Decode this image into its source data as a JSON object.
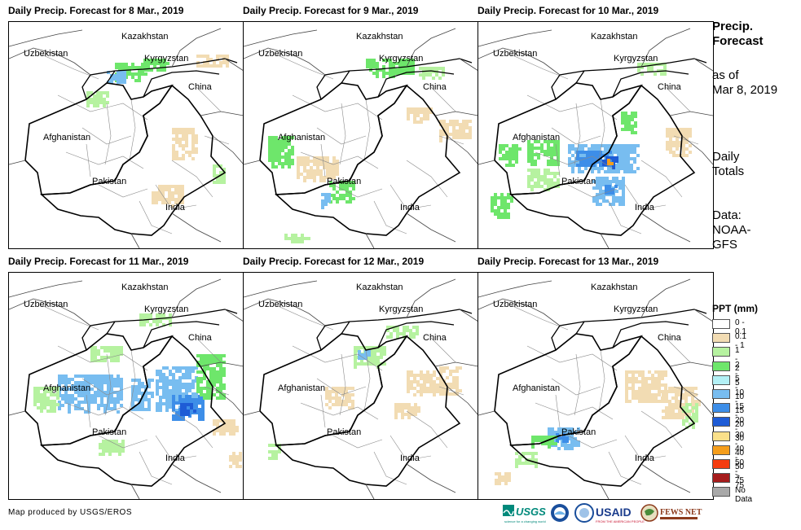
{
  "panels": [
    {
      "title": "Daily Precip. Forecast for 8 Mar., 2019",
      "intensity": 1
    },
    {
      "title": "Daily Precip. Forecast for 9 Mar., 2019",
      "intensity": 1
    },
    {
      "title": "Daily Precip. Forecast for 10 Mar., 2019",
      "intensity": 3
    },
    {
      "title": "Daily Precip. Forecast for 11 Mar., 2019",
      "intensity": 3
    },
    {
      "title": "Daily Precip. Forecast for 12 Mar., 2019",
      "intensity": 1
    },
    {
      "title": "Daily Precip. Forecast for 13 Mar., 2019",
      "intensity": 2
    }
  ],
  "map_labels": {
    "kazakhstan": "Kazakhstan",
    "uzbekistan": "Uzbekistan",
    "kyrgyzstan": "Kyrgyzstan",
    "china": "China",
    "afghanistan": "Afghanistan",
    "pakistan": "Pakistan",
    "india": "India"
  },
  "side": {
    "title_line1": "Precip.",
    "title_line2": "Forecast",
    "asof_line1": "as of",
    "asof_line2": "Mar 8, 2019",
    "daily_line1": "Daily",
    "daily_line2": "Totals",
    "data_line1": "Data:",
    "data_line2": "NOAA-",
    "data_line3": "GFS"
  },
  "legend": {
    "title": "PPT (mm)",
    "items": [
      {
        "label": "0 - 0.1",
        "color": "#ffffff"
      },
      {
        "label": "0.1 - 1",
        "color": "#f2dcb3"
      },
      {
        "label": "1 - 2",
        "color": "#b6f2a0"
      },
      {
        "label": "2 - 5",
        "color": "#6ee66b"
      },
      {
        "label": "5 - 10",
        "color": "#b3f0f5"
      },
      {
        "label": "10 - 15",
        "color": "#78bdf0"
      },
      {
        "label": "15 - 20",
        "color": "#3d8ee8"
      },
      {
        "label": "20 - 30",
        "color": "#1e5cd6"
      },
      {
        "label": "30 - 40",
        "color": "#fae08a"
      },
      {
        "label": "40 - 50",
        "color": "#f59e1c"
      },
      {
        "label": "50 - 75",
        "color": "#f53c0f"
      },
      {
        "label": "> 75",
        "color": "#a61c1c"
      },
      {
        "label": "No Data",
        "color": "#a8a8a8"
      }
    ]
  },
  "credit": "Map produced by USGS/EROS",
  "logos": {
    "usgs": "USGS",
    "usgs_tag": "science for a changing world",
    "usaid": "USAID",
    "usaid_tag": "FROM THE AMERICAN PEOPLE",
    "fewsnet": "FEWS NET"
  }
}
